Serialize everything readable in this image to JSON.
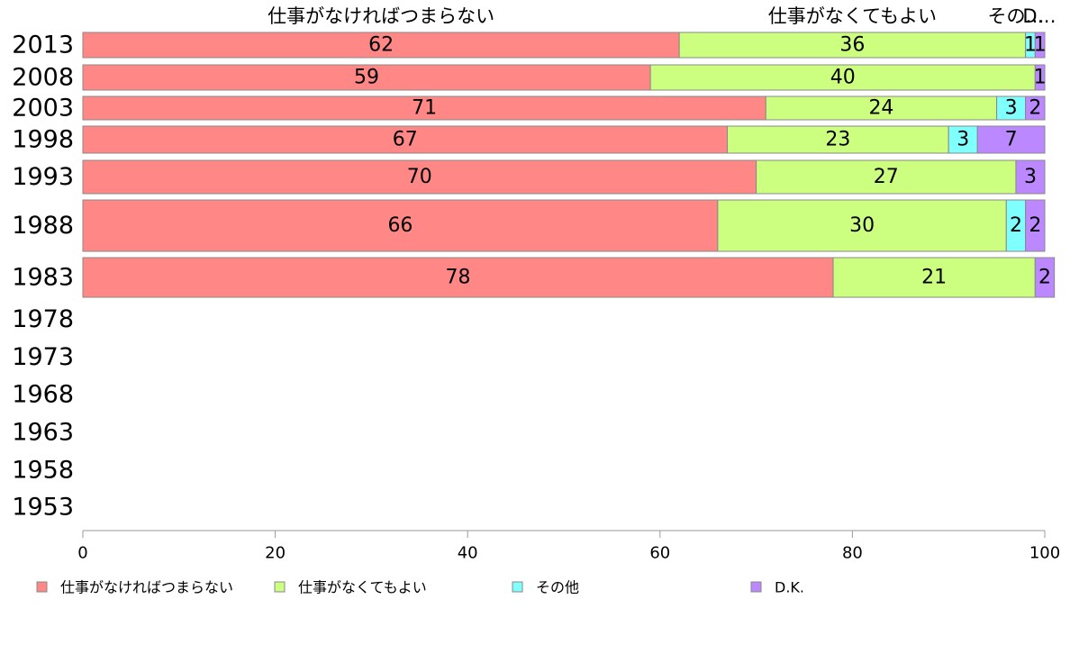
{
  "chart_data": {
    "type": "bar",
    "orientation": "horizontal",
    "stacked": true,
    "title": "",
    "xlabel": "",
    "ylabel": "",
    "xlim": [
      0,
      100
    ],
    "x_ticks": [
      "0",
      "20",
      "40",
      "60",
      "80",
      "100"
    ],
    "categories": [
      "2013",
      "2008",
      "2003",
      "1998",
      "1993",
      "1988",
      "1983",
      "1978",
      "1973",
      "1968",
      "1963",
      "1958",
      "1953"
    ],
    "series": [
      {
        "name": "仕事がなければつまらない",
        "color": "#ff8886",
        "values": [
          62,
          59,
          71,
          67,
          70,
          66,
          78,
          null,
          null,
          null,
          null,
          null,
          null
        ]
      },
      {
        "name": "仕事がなくてもよい",
        "color": "#ccff80",
        "values": [
          36,
          40,
          24,
          23,
          27,
          30,
          21,
          null,
          null,
          null,
          null,
          null,
          null
        ]
      },
      {
        "name": "その他",
        "color": "#80ffff",
        "values": [
          1,
          0,
          3,
          3,
          0,
          2,
          0,
          null,
          null,
          null,
          null,
          null,
          null
        ]
      },
      {
        "name": "D.K.",
        "color": "#bb88ff",
        "values": [
          1,
          1,
          2,
          7,
          3,
          2,
          2,
          null,
          null,
          null,
          null,
          null,
          null
        ]
      }
    ],
    "top_labels": [
      "仕事がなければつまらない",
      "仕事がなくてもよい",
      "その…",
      "D…"
    ],
    "legend_position": "bottom",
    "grid": false
  }
}
